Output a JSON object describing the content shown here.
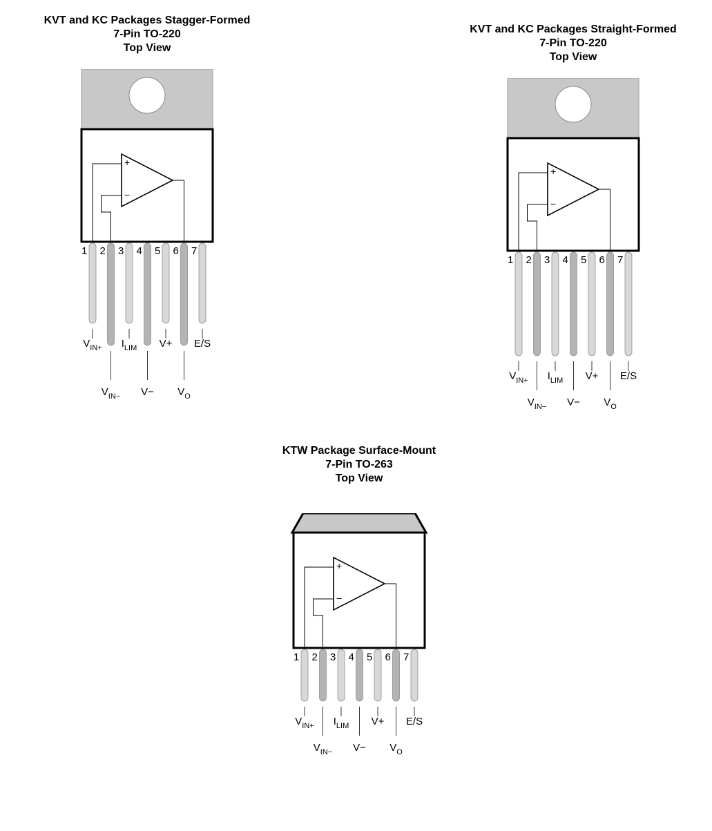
{
  "packages": [
    {
      "id": "stagger",
      "title_lines": [
        "KVT and KC Packages Stagger-Formed",
        "7-Pin TO-220",
        "Top View"
      ],
      "style": "to220",
      "stagger": true
    },
    {
      "id": "straight",
      "title_lines": [
        "KVT and KC Packages Straight-Formed",
        "7-Pin TO-220",
        "Top View"
      ],
      "style": "to220",
      "stagger": false
    },
    {
      "id": "surface",
      "title_lines": [
        "KTW Package Surface-Mount",
        "7-Pin TO-263",
        "Top View"
      ],
      "style": "to263",
      "stagger": false
    }
  ],
  "pin_numbers": [
    "1",
    "2",
    "3",
    "4",
    "5",
    "6",
    "7"
  ],
  "pin_labels": [
    {
      "main": "V",
      "sub": "IN+"
    },
    {
      "main": "V",
      "sub": "IN−"
    },
    {
      "main": "I",
      "sub": "LIM"
    },
    {
      "main": "V−",
      "sub": ""
    },
    {
      "main": "V+",
      "sub": ""
    },
    {
      "main": "V",
      "sub": "O"
    },
    {
      "main": "E/S",
      "sub": ""
    }
  ],
  "opamp": {
    "plus": "+",
    "minus": "−"
  },
  "colors": {
    "tab_fill": "#c8c8c8",
    "tab_stroke": "#9a9a9a",
    "body_stroke": "#000000",
    "lead_light": "#d8d8d8",
    "lead_dark": "#b4b4b4",
    "lead_stroke": "#8e8e8e"
  }
}
